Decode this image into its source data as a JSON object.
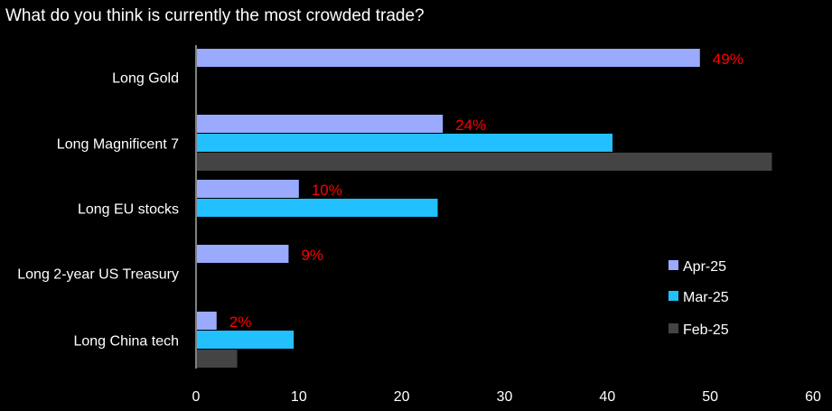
{
  "chart_data": {
    "type": "bar",
    "orientation": "horizontal",
    "title": "What do you think is currently the most crowded trade?",
    "categories": [
      "Long Gold",
      "Long Magnificent 7",
      "Long EU stocks",
      "Long 2-year US Treasury",
      "Long China tech"
    ],
    "series": [
      {
        "name": "Apr-25",
        "color": "#99aaff",
        "values": [
          49,
          24,
          10,
          9,
          2
        ],
        "labels": [
          "49%",
          "24%",
          "10%",
          "9%",
          "2%"
        ]
      },
      {
        "name": "Mar-25",
        "color": "#22c0ff",
        "values": [
          null,
          40.5,
          23.5,
          null,
          9.5
        ]
      },
      {
        "name": "Feb-25",
        "color": "#444444",
        "values": [
          null,
          56,
          null,
          null,
          4
        ]
      }
    ],
    "xlim": [
      0,
      60
    ],
    "xticks": [
      0,
      10,
      20,
      30,
      40,
      50,
      60
    ],
    "xlabel": "",
    "ylabel": "",
    "grid": false,
    "legend_position": "right",
    "label_color": "#ff0000"
  }
}
